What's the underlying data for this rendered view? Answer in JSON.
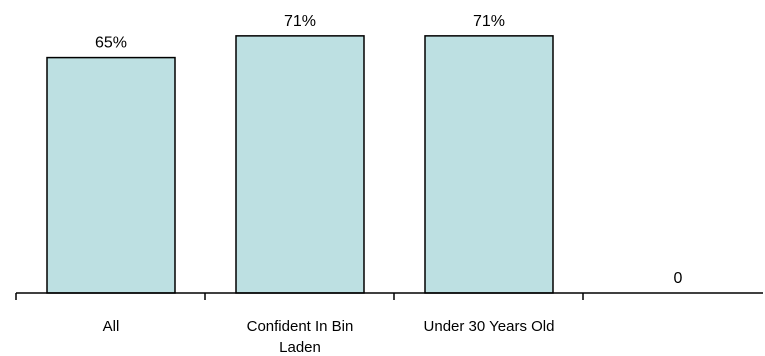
{
  "chart_data": {
    "type": "bar",
    "categories": [
      "All",
      "Confident In Bin Laden",
      "Under 30 Years Old",
      ""
    ],
    "category_label_lines": [
      [
        "All"
      ],
      [
        "Confident In Bin",
        "Laden"
      ],
      [
        "Under 30 Years Old"
      ],
      []
    ],
    "values": [
      65,
      71,
      71,
      0
    ],
    "data_labels": [
      "65%",
      "71%",
      "71%",
      "0"
    ],
    "ylim": [
      0,
      74
    ],
    "grid": false,
    "legend": "none",
    "colors": {
      "bar_fill": "#bde0e2",
      "bar_stroke": "#000000",
      "axis": "#000000",
      "text": "#000000"
    }
  }
}
